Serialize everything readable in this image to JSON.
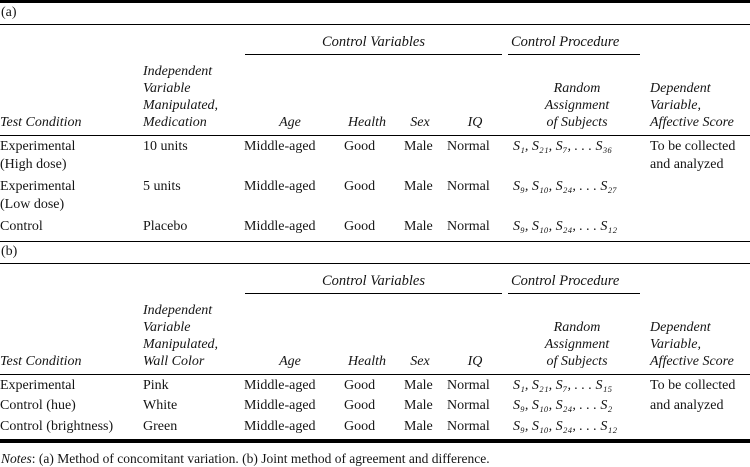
{
  "panels": [
    {
      "label": "(a)",
      "control_variables_label": "Control Variables",
      "control_procedure_label": "Control Procedure",
      "headers": {
        "test_condition": "Test Condition",
        "independent_variable": "Independent\nVariable\nManipulated,\nMedication",
        "age": "Age",
        "health": "Health",
        "sex": "Sex",
        "iq": "IQ",
        "random_assignment": "Random\nAssignment\nof Subjects",
        "dependent_variable": "Dependent\nVariable,\nAffective Score"
      },
      "rows": [
        {
          "test_condition": "Experimental\n(High dose)",
          "independent_variable": "10 units",
          "age": "Middle-aged",
          "health": "Good",
          "sex": "Male",
          "iq": "Normal",
          "subjects": "S₁, S₂₁, S₇, . . . S₃₆",
          "dependent_variable": "To be collected\nand analyzed"
        },
        {
          "test_condition": "Experimental\n(Low dose)",
          "independent_variable": "5 units",
          "age": "Middle-aged",
          "health": "Good",
          "sex": "Male",
          "iq": "Normal",
          "subjects": "S₉, S₁₀, S₂₄, . . . S₂₇",
          "dependent_variable": ""
        },
        {
          "test_condition": "Control",
          "independent_variable": "Placebo",
          "age": "Middle-aged",
          "health": "Good",
          "sex": "Male",
          "iq": "Normal",
          "subjects": "S₉, S₁₀, S₂₄, . . . S₁₂",
          "dependent_variable": ""
        }
      ]
    },
    {
      "label": "(b)",
      "control_variables_label": "Control Variables",
      "control_procedure_label": "Control Procedure",
      "headers": {
        "test_condition": "Test Condition",
        "independent_variable": "Independent\nVariable\nManipulated,\nWall Color",
        "age": "Age",
        "health": "Health",
        "sex": "Sex",
        "iq": "IQ",
        "random_assignment": "Random\nAssignment\nof Subjects",
        "dependent_variable": "Dependent\nVariable,\nAffective Score"
      },
      "rows": [
        {
          "test_condition": "Experimental",
          "independent_variable": "Pink",
          "age": "Middle-aged",
          "health": "Good",
          "sex": "Male",
          "iq": "Normal",
          "subjects": "S₁, S₂₁, S₇, . . . S₁₅",
          "dependent_variable": "To be collected"
        },
        {
          "test_condition": "Control (hue)",
          "independent_variable": "White",
          "age": "Middle-aged",
          "health": "Good",
          "sex": "Male",
          "iq": "Normal",
          "subjects": "S₉, S₁₀, S₂₄, . . . S₂",
          "dependent_variable": "and analyzed"
        },
        {
          "test_condition": "Control (brightness)",
          "independent_variable": "Green",
          "age": "Middle-aged",
          "health": "Good",
          "sex": "Male",
          "iq": "Normal",
          "subjects": "S₉, S₁₀, S₂₄, . . . S₁₂",
          "dependent_variable": ""
        }
      ]
    }
  ],
  "notes": {
    "label": "Notes",
    "text": ": (a) Method of concomitant variation. (b) Joint method of agreement and difference."
  }
}
